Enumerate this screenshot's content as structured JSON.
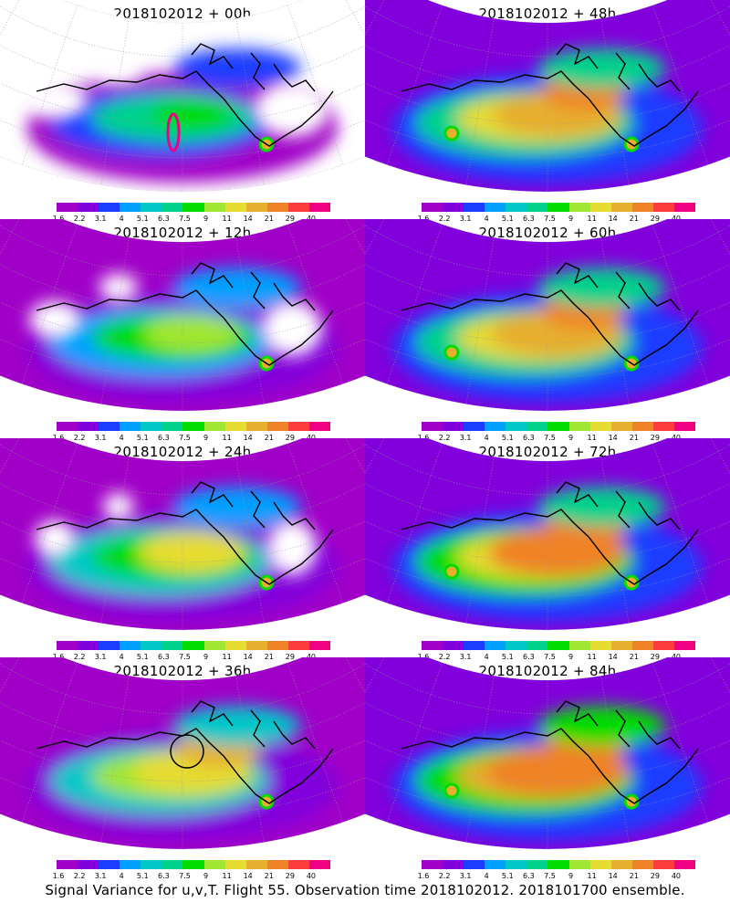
{
  "caption": "Signal Variance for u,v,T. Flight 55. Observation time 2018102012. 2018101700 ensemble.",
  "colorbar": {
    "labels": [
      "1.6",
      "2.2",
      "3.1",
      "4",
      "5.1",
      "6.3",
      "7.5",
      "9",
      "11",
      "14",
      "21",
      "29",
      "40"
    ],
    "colors": [
      "#a000c8",
      "#8200dc",
      "#1e3cff",
      "#00a0ff",
      "#00c8c8",
      "#00d28c",
      "#00dc00",
      "#a0e632",
      "#e6dc32",
      "#e6af2d",
      "#f08228",
      "#fa3c3c",
      "#f00082"
    ]
  },
  "chart_data": [
    {
      "type": "heatmap",
      "title": "2018102012 + 00h",
      "colorbar_levels": [
        1.6,
        2.2,
        3.1,
        4,
        5.1,
        6.3,
        7.5,
        9,
        11,
        14,
        21,
        29,
        40
      ]
    },
    {
      "type": "heatmap",
      "title": "2018102012 + 48h",
      "colorbar_levels": [
        1.6,
        2.2,
        3.1,
        4,
        5.1,
        6.3,
        7.5,
        9,
        11,
        14,
        21,
        29,
        40
      ]
    },
    {
      "type": "heatmap",
      "title": "2018102012 + 12h",
      "colorbar_levels": [
        1.6,
        2.2,
        3.1,
        4,
        5.1,
        6.3,
        7.5,
        9,
        11,
        14,
        21,
        29,
        40
      ]
    },
    {
      "type": "heatmap",
      "title": "2018102012 + 60h",
      "colorbar_levels": [
        1.6,
        2.2,
        3.1,
        4,
        5.1,
        6.3,
        7.5,
        9,
        11,
        14,
        21,
        29,
        40
      ]
    },
    {
      "type": "heatmap",
      "title": "2018102012 + 24h",
      "colorbar_levels": [
        1.6,
        2.2,
        3.1,
        4,
        5.1,
        6.3,
        7.5,
        9,
        11,
        14,
        21,
        29,
        40
      ]
    },
    {
      "type": "heatmap",
      "title": "2018102012 + 72h",
      "colorbar_levels": [
        1.6,
        2.2,
        3.1,
        4,
        5.1,
        6.3,
        7.5,
        9,
        11,
        14,
        21,
        29,
        40
      ]
    },
    {
      "type": "heatmap",
      "title": "2018102012 + 36h",
      "colorbar_levels": [
        1.6,
        2.2,
        3.1,
        4,
        5.1,
        6.3,
        7.5,
        9,
        11,
        14,
        21,
        29,
        40
      ]
    },
    {
      "type": "heatmap",
      "title": "2018102012 + 84h",
      "colorbar_levels": [
        1.6,
        2.2,
        3.1,
        4,
        5.1,
        6.3,
        7.5,
        9,
        11,
        14,
        21,
        29,
        40
      ]
    }
  ],
  "panels": [
    {
      "title": "2018102012 + 00h",
      "intensity": 0.1
    },
    {
      "title": "2018102012 + 48h",
      "intensity": 0.75
    },
    {
      "title": "2018102012 + 12h",
      "intensity": 0.3
    },
    {
      "title": "2018102012 + 60h",
      "intensity": 0.8
    },
    {
      "title": "2018102012 + 24h",
      "intensity": 0.45
    },
    {
      "title": "2018102012 + 72h",
      "intensity": 0.88
    },
    {
      "title": "2018102012 + 36h",
      "intensity": 0.6
    },
    {
      "title": "2018102012 + 84h",
      "intensity": 0.95
    }
  ]
}
